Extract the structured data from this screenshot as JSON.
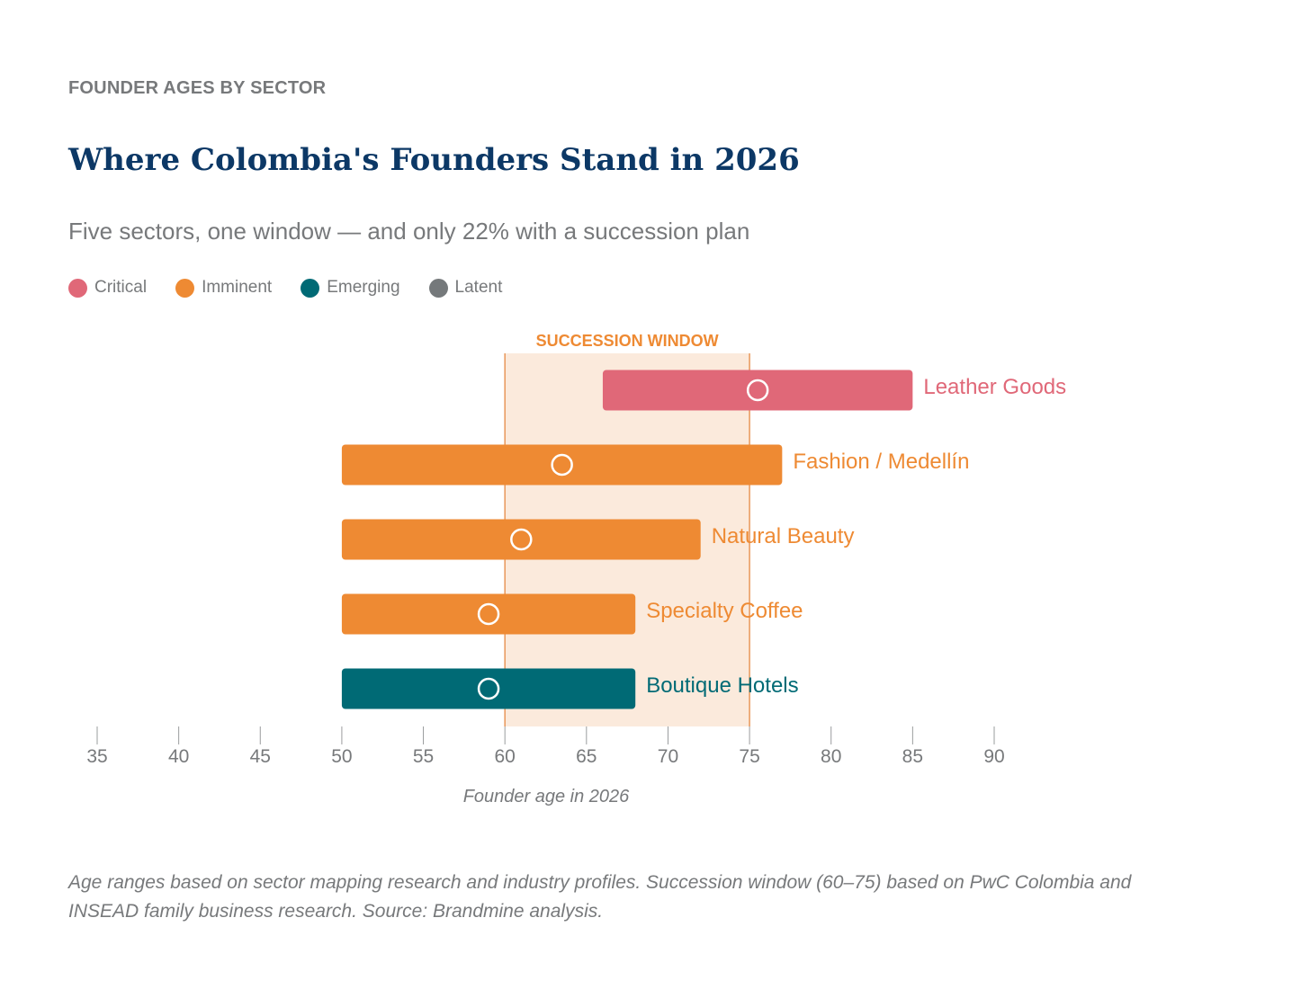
{
  "eyebrow": "FOUNDER AGES BY SECTOR",
  "title": "Where Colombia's Founders Stand in 2026",
  "subtitle": "Five sectors, one window — and only 22% with a succession plan",
  "legend": [
    {
      "label": "Critical",
      "color": "#e06878"
    },
    {
      "label": "Imminent",
      "color": "#ee8a33"
    },
    {
      "label": "Emerging",
      "color": "#006a75"
    },
    {
      "label": "Latent",
      "color": "#75797b"
    }
  ],
  "footnote": "Age ranges based on sector mapping research and industry profiles. Succession window (60–75) based on PwC Colombia and INSEAD family business research. Source: Brandmine analysis.",
  "chart_data": {
    "type": "range-bar",
    "xlabel": "Founder age in 2026",
    "xlim": [
      35,
      90
    ],
    "xticks": [
      35,
      40,
      45,
      50,
      55,
      60,
      65,
      70,
      75,
      80,
      85,
      90
    ],
    "grid": false,
    "legend_position": "top-left",
    "window": {
      "label": "SUCCESSION WINDOW",
      "from": 60,
      "to": 75,
      "color": "#fbeadc",
      "line_color": "#e8975a"
    },
    "series": [
      {
        "name": "Leather Goods",
        "min": 66,
        "max": 85,
        "marker": 75.5,
        "status": "Critical",
        "color": "#e06878"
      },
      {
        "name": "Fashion / Medellín",
        "min": 50,
        "max": 77,
        "marker": 63.5,
        "status": "Imminent",
        "color": "#ee8a33"
      },
      {
        "name": "Natural Beauty",
        "min": 50,
        "max": 72,
        "marker": 61,
        "status": "Imminent",
        "color": "#ee8a33"
      },
      {
        "name": "Specialty Coffee",
        "min": 50,
        "max": 68,
        "marker": 59,
        "status": "Imminent",
        "color": "#ee8a33"
      },
      {
        "name": "Boutique Hotels",
        "min": 50,
        "max": 68,
        "marker": 59,
        "status": "Emerging",
        "color": "#006a75"
      }
    ]
  }
}
